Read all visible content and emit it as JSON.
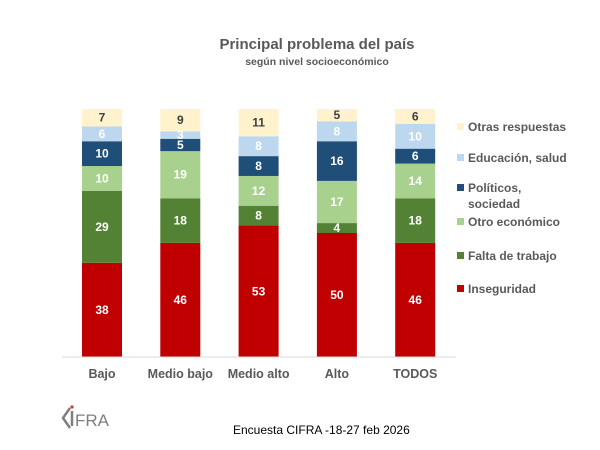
{
  "chart_data": {
    "type": "bar",
    "stacked": true,
    "title": "Principal problema del país",
    "subtitle": "según nivel socioeconómico",
    "xlabel": "",
    "ylabel": "",
    "ylim": [
      0,
      100
    ],
    "grid": false,
    "legend_position": "right",
    "categories": [
      "Bajo",
      "Medio bajo",
      "Medio alto",
      "Alto",
      "TODOS"
    ],
    "series": [
      {
        "name": "Inseguridad",
        "color": "#C00000",
        "label_color": "#FFFFFF",
        "values": [
          38,
          46,
          53,
          50,
          46
        ]
      },
      {
        "name": "Falta de trabajo",
        "color": "#548235",
        "label_color": "#FFFFFF",
        "values": [
          29,
          18,
          8,
          4,
          18
        ]
      },
      {
        "name": "Otro económico",
        "color": "#A9D18E",
        "label_color": "#FFFFFF",
        "values": [
          10,
          19,
          12,
          17,
          14
        ]
      },
      {
        "name": "Políticos, sociedad",
        "color": "#1F4E79",
        "label_color": "#FFFFFF",
        "values": [
          10,
          5,
          8,
          16,
          6
        ]
      },
      {
        "name": "Educación, salud",
        "color": "#BDD7EE",
        "label_color": "#FFFFFF",
        "values": [
          6,
          3,
          8,
          8,
          10
        ]
      },
      {
        "name": "Otras respuestas",
        "color": "#FFF2CC",
        "label_color": "#404040",
        "values": [
          7,
          9,
          11,
          5,
          6
        ]
      }
    ],
    "legend_order": [
      "Otras respuestas",
      "Educación, salud",
      "Políticos, sociedad",
      "Otro económico",
      "Falta de trabajo",
      "Inseguridad"
    ],
    "legend_lines": {
      "Otras respuestas": [
        "Otras respuestas"
      ],
      "Educación, salud": [
        "Educación, salud"
      ],
      "Políticos, sociedad": [
        "Políticos,",
        "sociedad"
      ],
      "Otro económico": [
        "Otro económico"
      ],
      "Falta de trabajo": [
        "Falta de trabajo"
      ],
      "Inseguridad": [
        "Inseguridad"
      ]
    }
  },
  "footer": {
    "source": "Encuesta CIFRA -18-27 feb 2026",
    "logo_text": "CIFRA"
  }
}
